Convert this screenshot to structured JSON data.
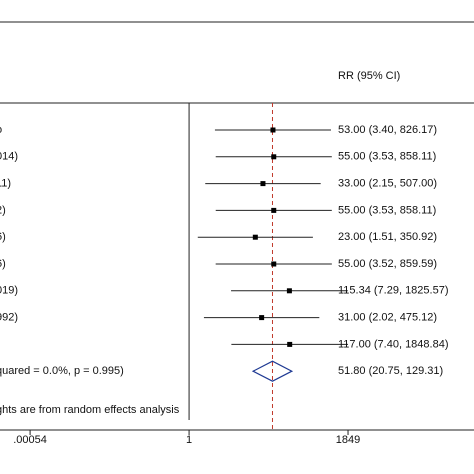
{
  "chart_data": {
    "type": "forest",
    "column_header": "RR (95% CI)",
    "categories": [
      "o",
      "014)",
      "11)",
      "2)",
      "6)",
      "6)",
      "019)",
      "992)",
      null
    ],
    "values": [
      53.0,
      55.0,
      33.0,
      55.0,
      23.0,
      55.0,
      115.34,
      31.0,
      117.0
    ],
    "lower": [
      3.4,
      3.53,
      2.15,
      3.53,
      1.51,
      3.52,
      7.29,
      2.02,
      7.4
    ],
    "upper": [
      826.17,
      858.11,
      507.0,
      858.11,
      350.92,
      859.59,
      1825.57,
      475.12,
      1848.84
    ],
    "value_labels": [
      "53.00 (3.40, 826.17)",
      "55.00 (3.53, 858.11)",
      "33.00 (2.15, 507.00)",
      "55.00 (3.53, 858.11)",
      "23.00 (1.51, 350.92)",
      "55.00 (3.52, 859.59)",
      "115.34 (7.29, 1825.57)",
      "31.00 (2.02, 475.12)",
      "117.00 (7.40, 1848.84)"
    ],
    "overall": {
      "label": "quared = 0.0%, p = 0.995)",
      "value": 51.8,
      "lower": 20.75,
      "upper": 129.31,
      "value_label": "51.80 (20.75, 129.31)"
    },
    "note": "ghts are from random effects analysis",
    "reference_line": 1,
    "xscale": "log",
    "xlim": [
      0.00013,
      718000
    ],
    "xticks": [
      {
        "value": 0.00054,
        "label": ".00054"
      },
      1,
      1849
    ],
    "marker_color": "#000000",
    "overall_line_color": "#c0392b",
    "diamond_color": "#1f3a93"
  }
}
